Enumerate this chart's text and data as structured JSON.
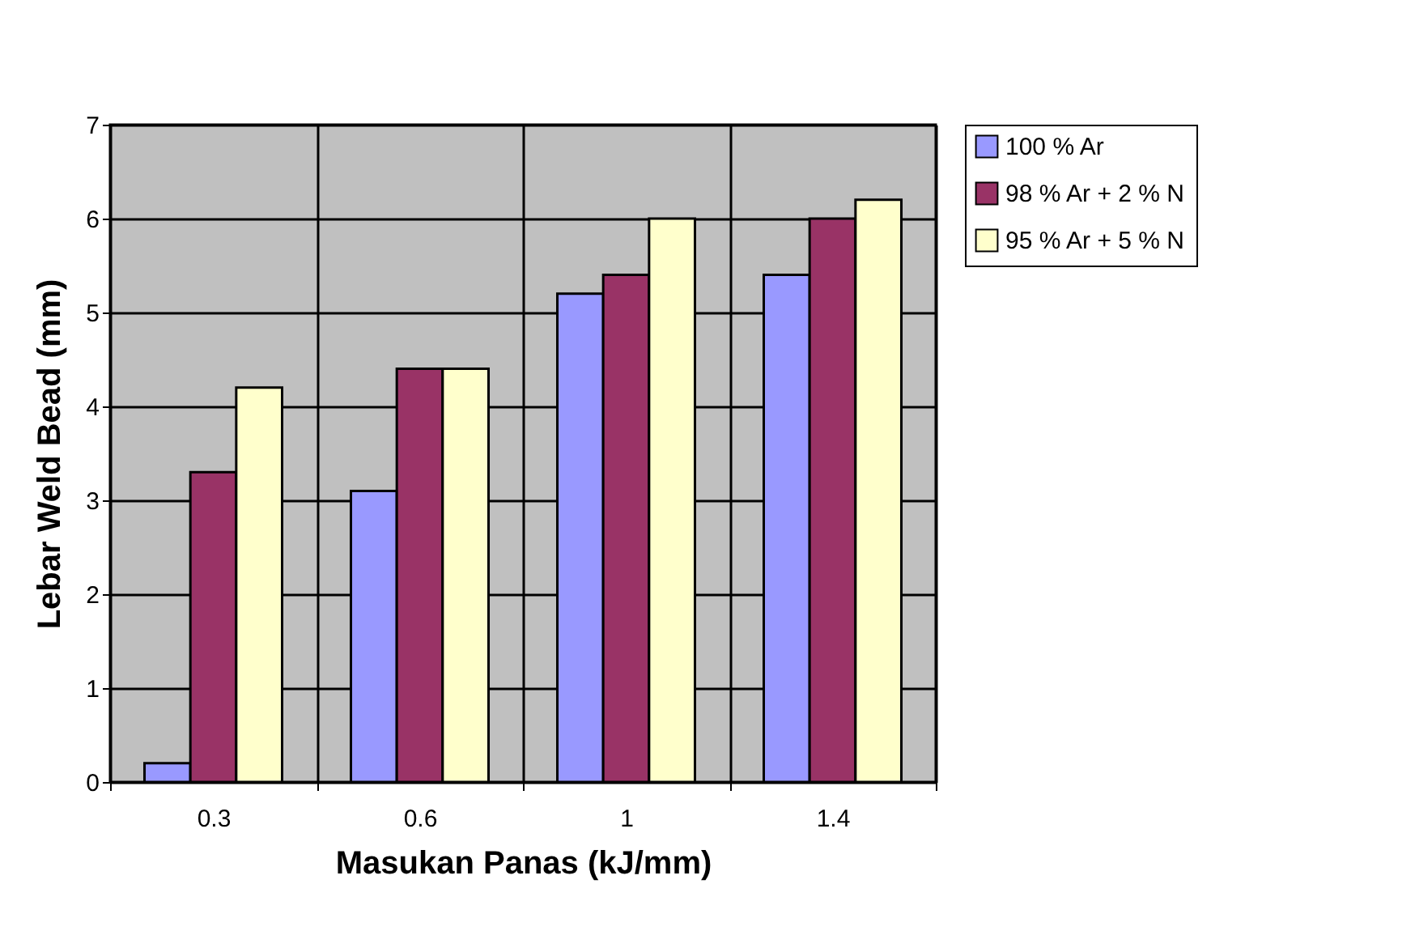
{
  "chart_data": {
    "type": "bar",
    "xlabel": "Masukan Panas (kJ/mm)",
    "ylabel": "Lebar Weld Bead (mm)",
    "categories": [
      "0.3",
      "0.6",
      "1",
      "1.4"
    ],
    "series": [
      {
        "name": "100 % Ar",
        "color": "#9999ff",
        "values": [
          0.2,
          3.1,
          5.2,
          5.4
        ]
      },
      {
        "name": "98 % Ar + 2 % N",
        "color": "#993366",
        "values": [
          3.3,
          4.4,
          5.4,
          6.0
        ]
      },
      {
        "name": "95 % Ar + 5 % N",
        "color": "#ffffcc",
        "values": [
          4.2,
          4.4,
          6.0,
          6.2
        ]
      }
    ],
    "ylim": [
      0,
      7
    ],
    "yticks": [
      0,
      1,
      2,
      3,
      4,
      5,
      6,
      7
    ],
    "grid": true,
    "legend": "right"
  }
}
